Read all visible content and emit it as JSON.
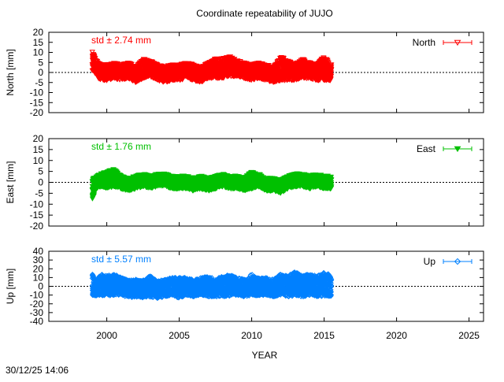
{
  "chart_data": {
    "type": "scatter",
    "title": "Coordinate repeatability of JUJO",
    "xlabel": "YEAR",
    "xlim": [
      1996,
      2026
    ],
    "xticks": [
      2000,
      2005,
      2010,
      2015,
      2020,
      2025
    ],
    "timestamp": "30/12/25 14:06",
    "panels": [
      {
        "name": "North",
        "ylabel": "North [mm]",
        "ylim": [
          -20,
          20
        ],
        "yticks": [
          20,
          15,
          10,
          5,
          0,
          -5,
          -10,
          -15,
          -20
        ],
        "color": "#ff0000",
        "marker": "open-triangle-down",
        "std_label": "std ± 2.74 mm",
        "x": [
          1999.0,
          1999.3,
          1999.6,
          2000.0,
          2000.5,
          2001.0,
          2001.5,
          2002.0,
          2002.5,
          2003.0,
          2003.5,
          2004.0,
          2004.5,
          2005.0,
          2005.5,
          2006.0,
          2006.5,
          2007.0,
          2007.5,
          2008.0,
          2008.5,
          2009.0,
          2009.5,
          2010.0,
          2010.5,
          2011.0,
          2011.5,
          2012.0,
          2012.5,
          2013.0,
          2013.5,
          2014.0,
          2014.5,
          2015.0,
          2015.5
        ],
        "mean": [
          6,
          2,
          0,
          0,
          1,
          0,
          1,
          -1,
          2,
          2,
          0,
          -1,
          0,
          0,
          1,
          0,
          -1,
          1,
          2,
          2,
          3,
          2,
          1,
          0,
          1,
          0,
          -1,
          2,
          1,
          0,
          2,
          1,
          0,
          2,
          0
        ],
        "spread": [
          5,
          4,
          4,
          4,
          4,
          4,
          4,
          4,
          5,
          4,
          4,
          4,
          4,
          4,
          4,
          4,
          4,
          4,
          5,
          5,
          5,
          4,
          4,
          4,
          4,
          4,
          4,
          6,
          5,
          4,
          5,
          4,
          4,
          6,
          4
        ]
      },
      {
        "name": "East",
        "ylabel": "East [mm]",
        "ylim": [
          -20,
          20
        ],
        "yticks": [
          20,
          15,
          10,
          5,
          0,
          -5,
          -10,
          -15,
          -20
        ],
        "color": "#00c000",
        "marker": "filled-triangle-down",
        "std_label": "std ± 1.76 mm",
        "x": [
          1999.0,
          1999.3,
          1999.6,
          2000.0,
          2000.5,
          2001.0,
          2001.5,
          2002.0,
          2002.5,
          2003.0,
          2003.5,
          2004.0,
          2004.5,
          2005.0,
          2005.5,
          2006.0,
          2006.5,
          2007.0,
          2007.5,
          2008.0,
          2008.5,
          2009.0,
          2009.5,
          2010.0,
          2010.5,
          2011.0,
          2011.5,
          2012.0,
          2012.5,
          2013.0,
          2013.5,
          2014.0,
          2014.5,
          2015.0,
          2015.5
        ],
        "mean": [
          -3,
          0,
          1,
          1,
          2,
          0,
          -1,
          0,
          1,
          0,
          1,
          1,
          0,
          0,
          0,
          -1,
          0,
          -1,
          0,
          1,
          0,
          0,
          -1,
          1,
          1,
          -1,
          -1,
          -2,
          0,
          1,
          1,
          0,
          1,
          0,
          0
        ],
        "spread": [
          5,
          3,
          3,
          4,
          4,
          3,
          3,
          3,
          3,
          3,
          3,
          3,
          3,
          3,
          3,
          3,
          3,
          3,
          3,
          3,
          3,
          3,
          3,
          4,
          3,
          3,
          3,
          3,
          3,
          3,
          3,
          3,
          3,
          3,
          3
        ]
      },
      {
        "name": "Up",
        "ylabel": "Up [mm]",
        "ylim": [
          -40,
          40
        ],
        "yticks": [
          40,
          30,
          20,
          10,
          0,
          -10,
          -20,
          -30,
          -40
        ],
        "color": "#0080ff",
        "marker": "open-diamond",
        "std_label": "std ± 5.57 mm",
        "x": [
          1999.0,
          1999.3,
          1999.6,
          2000.0,
          2000.5,
          2001.0,
          2001.5,
          2002.0,
          2002.5,
          2003.0,
          2003.5,
          2004.0,
          2004.5,
          2005.0,
          2005.5,
          2006.0,
          2006.5,
          2007.0,
          2007.5,
          2008.0,
          2008.5,
          2009.0,
          2009.5,
          2010.0,
          2010.5,
          2011.0,
          2011.5,
          2012.0,
          2012.5,
          2013.0,
          2013.5,
          2014.0,
          2014.5,
          2015.0,
          2015.5
        ],
        "mean": [
          2,
          -2,
          2,
          0,
          2,
          0,
          -3,
          -2,
          -3,
          0,
          -4,
          -2,
          0,
          -2,
          0,
          -2,
          0,
          0,
          -2,
          0,
          1,
          0,
          -2,
          2,
          -1,
          0,
          -2,
          2,
          0,
          3,
          0,
          2,
          0,
          3,
          0
        ],
        "spread": [
          12,
          10,
          12,
          12,
          12,
          10,
          10,
          10,
          10,
          12,
          10,
          10,
          10,
          12,
          10,
          10,
          10,
          12,
          10,
          12,
          12,
          10,
          10,
          12,
          10,
          10,
          10,
          12,
          12,
          14,
          12,
          12,
          12,
          14,
          12
        ]
      }
    ]
  }
}
